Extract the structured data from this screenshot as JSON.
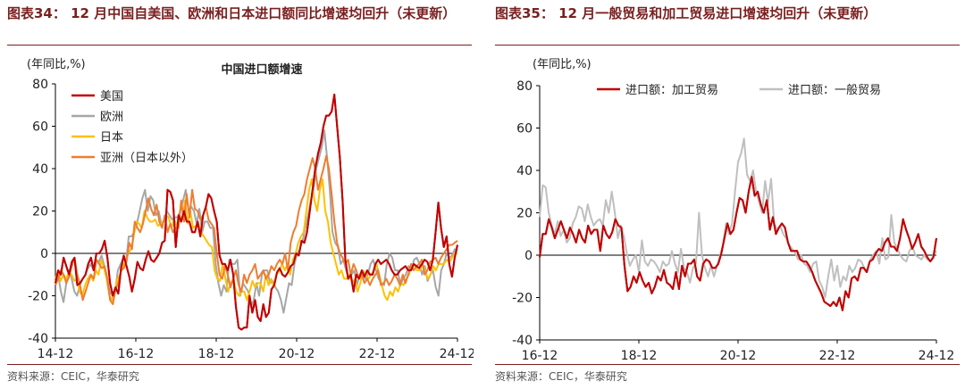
{
  "panel1": {
    "title": "图表34： 12 月中国自美国、欧洲和日本进口额同比增速均回升（未更新）",
    "source": "资料来源：CEIC，华泰研究",
    "chart_data": {
      "type": "line",
      "title": "中国进口额增速",
      "ylabel": "(年同比,%)",
      "ylim": [
        -40,
        80
      ],
      "yticks": [
        "80",
        "60",
        "40",
        "20",
        "0",
        "-20",
        "-40"
      ],
      "xticks": [
        "14-12",
        "16-12",
        "18-12",
        "20-12",
        "22-12",
        "24-12"
      ],
      "x_start": "2014-12",
      "x_end": "2024-12",
      "legend": "top-left",
      "series": [
        {
          "name": "美国",
          "color": "#c00000",
          "values": [
            -14,
            -8,
            -10,
            -2,
            -6,
            -10,
            -4,
            -2,
            -15,
            -14,
            -12,
            -10,
            -5,
            -2,
            -8,
            0,
            0,
            2,
            6,
            -2,
            -14,
            -20,
            -16,
            -19,
            -7,
            -1,
            -6,
            -11,
            -18,
            -12,
            -4,
            -7,
            -8,
            -3,
            1,
            -3,
            -4,
            -2,
            0,
            5,
            6,
            30,
            29,
            25,
            3,
            18,
            15,
            20,
            15,
            15,
            10,
            10,
            15,
            8,
            18,
            22,
            28,
            26,
            20,
            15,
            -1,
            -5,
            -5,
            -8,
            -3,
            -10,
            -25,
            -35,
            -36,
            -35,
            -35,
            -20,
            -28,
            -22,
            -30,
            -32,
            -24,
            -30,
            -28,
            -17,
            -15,
            -9,
            -7,
            -10,
            -11,
            -9,
            -6,
            -5,
            0,
            -1,
            6,
            5,
            10,
            20,
            30,
            40,
            47,
            52,
            60,
            65,
            65,
            67,
            75,
            60,
            45,
            25,
            -3,
            -12,
            -10,
            -18,
            -10,
            -12,
            -8,
            -11,
            -8,
            -10,
            -10,
            -5,
            -3,
            -5,
            -4,
            -3,
            -5,
            -8,
            -10,
            -10,
            -8,
            -7,
            -6,
            -8,
            -8,
            -5,
            -6,
            -7,
            -5,
            -3,
            -4,
            -8,
            -3,
            10,
            24,
            12,
            3,
            8,
            -5,
            -11,
            -2,
            4
          ]
        },
        {
          "name": "欧洲",
          "color": "#a6a6a6",
          "values": [
            -14,
            -10,
            -18,
            -23,
            -14,
            -8,
            -12,
            -18,
            -20,
            -15,
            -12,
            -10,
            -7,
            -5,
            -8,
            -3,
            -4,
            -1,
            -6,
            -12,
            -18,
            -20,
            -18,
            -8,
            -5,
            -2,
            -4,
            8,
            8,
            10,
            14,
            20,
            26,
            30,
            20,
            27,
            25,
            18,
            20,
            14,
            15,
            20,
            18,
            16,
            17,
            17,
            20,
            25,
            30,
            20,
            22,
            20,
            14,
            21,
            10,
            15,
            15,
            12,
            12,
            -5,
            -14,
            -20,
            -15,
            -18,
            -3,
            -5,
            -5,
            -3,
            -20,
            -14,
            -16,
            -18,
            -25,
            -22,
            -14,
            -20,
            -10,
            -8,
            -8,
            -14,
            -13,
            -16,
            -18,
            -22,
            -28,
            -21,
            -14,
            -15,
            -5,
            0,
            2,
            6,
            12,
            18,
            25,
            30,
            40,
            45,
            50,
            58,
            45,
            30,
            10,
            5,
            3,
            -5,
            -3,
            -8,
            -12,
            -10,
            -8,
            -15,
            -10,
            -8,
            -12,
            -10,
            -5,
            -3,
            -8,
            -12,
            -14,
            -15,
            -5,
            0,
            -2,
            -8,
            -8,
            -15,
            -12,
            -10,
            -6,
            -8,
            -3,
            -2,
            -5,
            -10,
            -6,
            -13,
            -10,
            -8,
            -16,
            -20,
            -8,
            -5,
            0,
            -2,
            -1,
            2,
            1
          ]
        },
        {
          "name": "日本",
          "color": "#ffc000",
          "values": [
            -12,
            -8,
            -13,
            -10,
            -12,
            -9,
            -10,
            -13,
            -12,
            -18,
            -20,
            -15,
            -12,
            -10,
            -13,
            -8,
            -10,
            -3,
            -7,
            -12,
            -20,
            -22,
            -18,
            -12,
            -10,
            -6,
            -4,
            0,
            2,
            8,
            15,
            14,
            12,
            20,
            17,
            15,
            15,
            16,
            13,
            14,
            15,
            18,
            17,
            12,
            16,
            13,
            18,
            16,
            25,
            14,
            20,
            12,
            13,
            14,
            10,
            8,
            6,
            4,
            3,
            -8,
            -12,
            -13,
            -5,
            -12,
            -18,
            -14,
            -12,
            -18,
            -20,
            -18,
            -18,
            -22,
            -18,
            -13,
            -16,
            -14,
            -14,
            -18,
            -10,
            -15,
            -12,
            -16,
            -10,
            -8,
            -5,
            -8,
            -5,
            -10,
            -3,
            0,
            5,
            8,
            10,
            20,
            30,
            35,
            25,
            20,
            30,
            35,
            20,
            15,
            5,
            0,
            -5,
            -10,
            -8,
            -12,
            -12,
            -10,
            -14,
            -12,
            -18,
            -14,
            -8,
            -10,
            -12,
            -10,
            -8,
            -5,
            -10,
            -15,
            -20,
            -22,
            -18,
            -20,
            -16,
            -18,
            -14,
            -15,
            -12,
            -10,
            -6,
            -5,
            -8,
            -8,
            -5,
            -8,
            -12,
            -10,
            -6,
            -8,
            -5,
            -5,
            -5,
            -3,
            -4,
            -2,
            0,
            0
          ]
        },
        {
          "name": "亚洲（日本以外）",
          "color": "#ed7d31",
          "values": [
            -15,
            -12,
            -8,
            -10,
            -14,
            -11,
            -6,
            -2,
            -10,
            -15,
            -22,
            -18,
            -14,
            -10,
            -12,
            -3,
            -5,
            -7,
            -6,
            -12,
            -22,
            -24,
            -17,
            -14,
            -8,
            -7,
            -4,
            5,
            2,
            15,
            12,
            10,
            14,
            20,
            26,
            21,
            18,
            23,
            15,
            12,
            18,
            10,
            14,
            10,
            12,
            12,
            25,
            15,
            28,
            17,
            30,
            21,
            20,
            16,
            18,
            22,
            16,
            14,
            12,
            0,
            -10,
            -12,
            -6,
            -10,
            -16,
            -12,
            -8,
            -15,
            -18,
            -10,
            -14,
            -10,
            -8,
            -5,
            -12,
            -10,
            -8,
            -12,
            -10,
            -6,
            -8,
            -5,
            -3,
            -5,
            0,
            -8,
            5,
            10,
            13,
            20,
            25,
            28,
            35,
            40,
            45,
            40,
            30,
            35,
            40,
            46,
            40,
            28,
            15,
            5,
            0,
            -2,
            -5,
            -3,
            -10,
            -5,
            -8,
            -12,
            -10,
            -14,
            -12,
            -15,
            -12,
            -10,
            -8,
            -15,
            -14,
            -12,
            -15,
            -13,
            -10,
            -12,
            -15,
            -10,
            -14,
            -10,
            -5,
            -8,
            -6,
            -5,
            -3,
            -10,
            -8,
            -4,
            -3,
            -2,
            -5,
            -2,
            0,
            2,
            4,
            4,
            5,
            6
          ]
        }
      ]
    }
  },
  "panel2": {
    "title": "图表35： 12 月一般贸易和加工贸易进口增速均回升（未更新）",
    "source": "资料来源：CEIC，华泰研究",
    "chart_data": {
      "type": "line",
      "title": "",
      "ylabel": "(年同比,%)",
      "ylim": [
        -40,
        80
      ],
      "yticks": [
        "80",
        "60",
        "40",
        "20",
        "0",
        "-20",
        "-40"
      ],
      "xticks": [
        "16-12",
        "18-12",
        "20-12",
        "22-12",
        "24-12"
      ],
      "x_start": "2016-12",
      "x_end": "2024-12",
      "legend": "top",
      "series": [
        {
          "name": "进口额：加工贸易",
          "color": "#c00000",
          "values": [
            -1,
            10,
            10,
            17,
            13,
            8,
            12,
            16,
            12,
            8,
            13,
            10,
            6,
            12,
            8,
            6,
            14,
            10,
            12,
            12,
            2,
            14,
            10,
            8,
            11,
            17,
            14,
            13,
            -5,
            -17,
            -15,
            -10,
            -13,
            -8,
            -12,
            -15,
            -13,
            -18,
            -15,
            -10,
            -12,
            -7,
            -13,
            -14,
            -16,
            -8,
            -16,
            -5,
            -10,
            -4,
            -4,
            -2,
            -10,
            -12,
            -4,
            -2,
            -3,
            -6,
            -6,
            -4,
            1,
            8,
            15,
            10,
            12,
            20,
            27,
            26,
            20,
            30,
            37,
            28,
            30,
            24,
            20,
            26,
            12,
            18,
            10,
            13,
            15,
            13,
            6,
            2,
            2,
            2,
            -2,
            -3,
            -3,
            -5,
            -8,
            -12,
            -15,
            -18,
            -22,
            -23,
            -24,
            -22,
            -24,
            -20,
            -26,
            -17,
            -20,
            -11,
            -10,
            -12,
            -6,
            -6,
            -8,
            -3,
            -2,
            1,
            3,
            2,
            6,
            8,
            4,
            4,
            2,
            8,
            17,
            12,
            8,
            3,
            6,
            10,
            4,
            2,
            -1,
            -3,
            -1,
            8
          ]
        },
        {
          "name": "进口额：一般贸易",
          "color": "#bfbfbf",
          "values": [
            18,
            33,
            32,
            20,
            14,
            10,
            16,
            9,
            12,
            6,
            8,
            15,
            18,
            23,
            22,
            16,
            24,
            18,
            14,
            16,
            17,
            14,
            26,
            20,
            30,
            20,
            8,
            14,
            9,
            1,
            -5,
            -2,
            0,
            -8,
            7,
            -3,
            -5,
            -2,
            -3,
            -5,
            -8,
            -3,
            -5,
            -4,
            2,
            -4,
            -8,
            3,
            -6,
            -8,
            -13,
            -6,
            -4,
            20,
            0,
            -6,
            -10,
            -5,
            -10,
            -5,
            0,
            5,
            15,
            10,
            15,
            30,
            44,
            48,
            55,
            38,
            35,
            40,
            30,
            25,
            20,
            35,
            25,
            36,
            15,
            12,
            14,
            10,
            8,
            5,
            3,
            1,
            -2,
            0,
            -4,
            -5,
            -8,
            -4,
            -3,
            -12,
            -15,
            -20,
            -10,
            -2,
            -12,
            -5,
            -15,
            -10,
            -12,
            -5,
            -8,
            -6,
            -2,
            -3,
            -6,
            -8,
            -2,
            0,
            2,
            -4,
            8,
            -2,
            -1,
            19,
            6,
            3,
            0,
            -2,
            -3,
            2,
            4,
            0,
            -1,
            -2,
            0,
            -2,
            -3,
            0,
            2
          ]
        }
      ]
    }
  }
}
